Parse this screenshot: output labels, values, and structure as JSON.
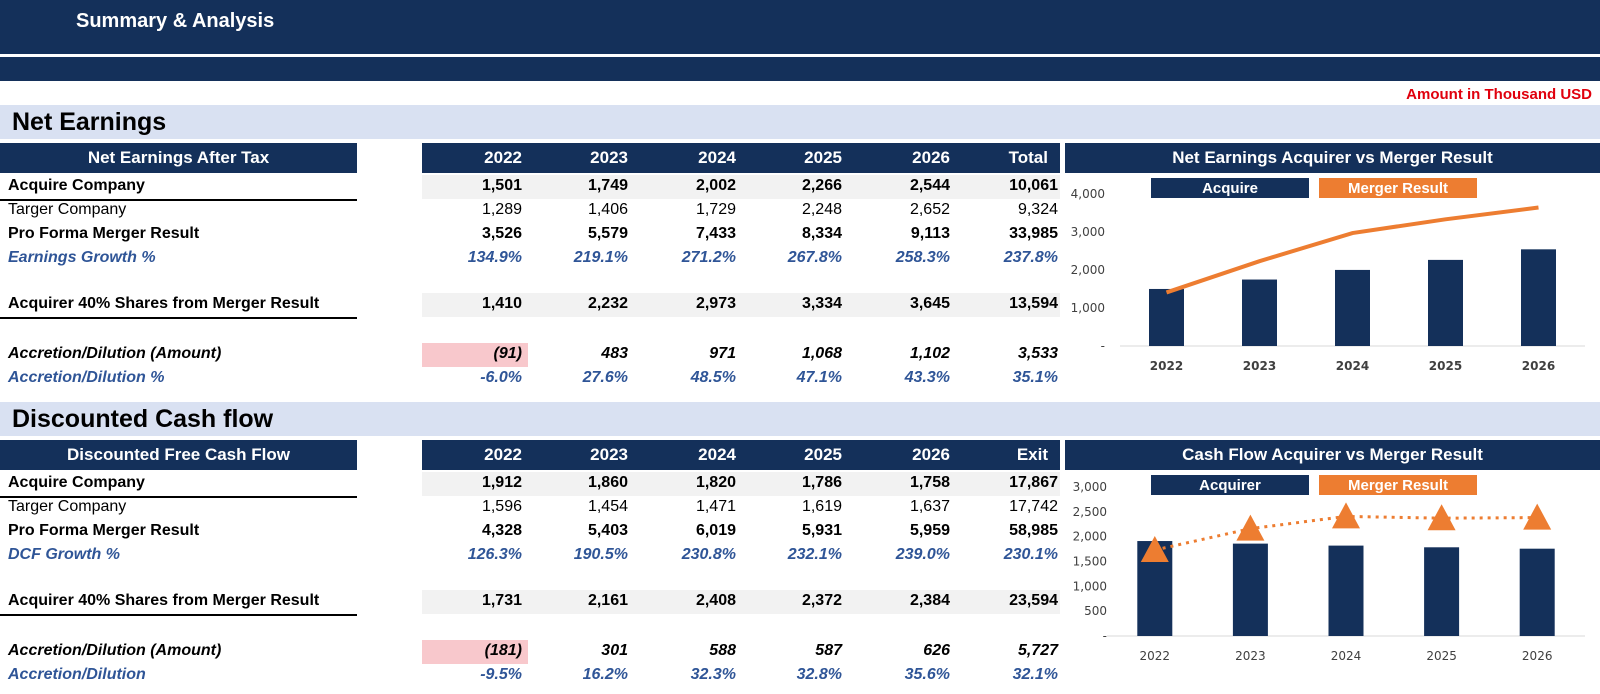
{
  "header": {
    "title": "Summary & Analysis",
    "unit_note": "Amount in Thousand USD"
  },
  "colors": {
    "navy": "#14305a",
    "orange": "#ed7d31",
    "band": "#d9e1f2",
    "negative_highlight": "#f8c8cc",
    "italic_blue": "#2f5597",
    "unit_red": "#e0000d"
  },
  "net_earnings": {
    "section_title": "Net Earnings",
    "table_title": "Net Earnings After Tax",
    "columns": [
      "2022",
      "2023",
      "2024",
      "2025",
      "2026",
      "Total"
    ],
    "rows": [
      {
        "label": "Acquire Company",
        "values": [
          "1,501",
          "1,749",
          "2,002",
          "2,266",
          "2,544",
          "10,061"
        ]
      },
      {
        "label": "Targer Company",
        "values": [
          "1,289",
          "1,406",
          "1,729",
          "2,248",
          "2,652",
          "9,324"
        ]
      },
      {
        "label": "Pro Forma Merger Result",
        "values": [
          "3,526",
          "5,579",
          "7,433",
          "8,334",
          "9,113",
          "33,985"
        ]
      },
      {
        "label": "Earnings Growth %",
        "values": [
          "134.9%",
          "219.1%",
          "271.2%",
          "267.8%",
          "258.3%",
          "237.8%"
        ]
      },
      {
        "label": "Acquirer 40% Shares from Merger Result",
        "values": [
          "1,410",
          "2,232",
          "2,973",
          "3,334",
          "3,645",
          "13,594"
        ]
      },
      {
        "label": "Accretion/Dilution (Amount)",
        "values": [
          "(91)",
          "483",
          "971",
          "1,068",
          "1,102",
          "3,533"
        ]
      },
      {
        "label": "Accretion/Dilution %",
        "values": [
          "-6.0%",
          "27.6%",
          "48.5%",
          "47.1%",
          "43.3%",
          "35.1%"
        ]
      }
    ]
  },
  "cash_flow": {
    "section_title": "Discounted Cash flow",
    "table_title": "Discounted Free Cash Flow",
    "columns": [
      "2022",
      "2023",
      "2024",
      "2025",
      "2026",
      "Exit"
    ],
    "rows": [
      {
        "label": "Acquire Company",
        "values": [
          "1,912",
          "1,860",
          "1,820",
          "1,786",
          "1,758",
          "17,867"
        ]
      },
      {
        "label": "Targer Company",
        "values": [
          "1,596",
          "1,454",
          "1,471",
          "1,619",
          "1,637",
          "17,742"
        ]
      },
      {
        "label": "Pro Forma Merger Result",
        "values": [
          "4,328",
          "5,403",
          "6,019",
          "5,931",
          "5,959",
          "58,985"
        ]
      },
      {
        "label": "DCF Growth %",
        "values": [
          "126.3%",
          "190.5%",
          "230.8%",
          "232.1%",
          "239.0%",
          "230.1%"
        ]
      },
      {
        "label": "Acquirer 40% Shares from Merger Result",
        "values": [
          "1,731",
          "2,161",
          "2,408",
          "2,372",
          "2,384",
          "23,594"
        ]
      },
      {
        "label": "Accretion/Dilution (Amount)",
        "values": [
          "(181)",
          "301",
          "588",
          "587",
          "626",
          "5,727"
        ]
      },
      {
        "label": "Accretion/Dilution",
        "values": [
          "-9.5%",
          "16.2%",
          "32.3%",
          "32.8%",
          "35.6%",
          "32.1%"
        ]
      }
    ]
  },
  "chart_data": [
    {
      "type": "bar",
      "title": "Net Earnings Acquirer vs Merger Result",
      "categories": [
        "2022",
        "2023",
        "2024",
        "2025",
        "2026"
      ],
      "ylim": [
        0,
        4000
      ],
      "yticks": [
        "-",
        "1,000",
        "2,000",
        "3,000",
        "4,000"
      ],
      "series": [
        {
          "name": "Acquire",
          "type": "bar",
          "values": [
            1501,
            1749,
            2002,
            2266,
            2544
          ]
        },
        {
          "name": "Merger Result",
          "type": "line",
          "values": [
            1410,
            2232,
            2973,
            3334,
            3645
          ]
        }
      ],
      "legend": "top"
    },
    {
      "type": "bar",
      "title": "Cash Flow Acquirer vs Merger Result",
      "categories": [
        "2022",
        "2023",
        "2024",
        "2025",
        "2026"
      ],
      "ylim": [
        0,
        3000
      ],
      "yticks": [
        "-",
        "500",
        "1,000",
        "1,500",
        "2,000",
        "2,500",
        "3,000"
      ],
      "series": [
        {
          "name": "Acquirer",
          "type": "bar",
          "values": [
            1912,
            1860,
            1820,
            1786,
            1758
          ]
        },
        {
          "name": "Merger Result",
          "type": "line",
          "values": [
            1731,
            2161,
            2408,
            2372,
            2384
          ]
        }
      ],
      "legend": "top"
    }
  ]
}
